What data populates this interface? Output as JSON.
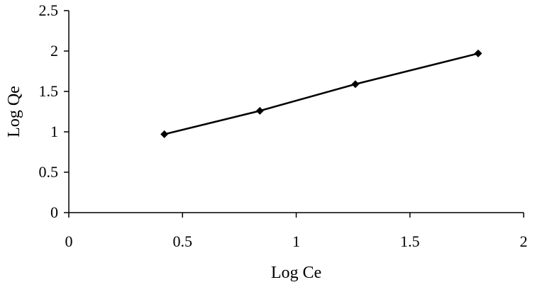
{
  "chart_data": {
    "type": "line",
    "title": "",
    "xlabel": "Log Ce",
    "ylabel": "Log Qe",
    "xlim": [
      0,
      2
    ],
    "ylim": [
      0,
      2.5
    ],
    "xticks": [
      "0",
      "0.5",
      "1",
      "1.5",
      "2"
    ],
    "yticks": [
      "0",
      "0.5",
      "1",
      "1.5",
      "2",
      "2.5"
    ],
    "grid": false,
    "series": [
      {
        "x": [
          0.42,
          0.84,
          1.26,
          1.8
        ],
        "y": [
          0.97,
          1.26,
          1.59,
          1.97
        ]
      }
    ],
    "marker": "diamond",
    "colors": {
      "line": "#000000",
      "axis": "#000000"
    }
  }
}
